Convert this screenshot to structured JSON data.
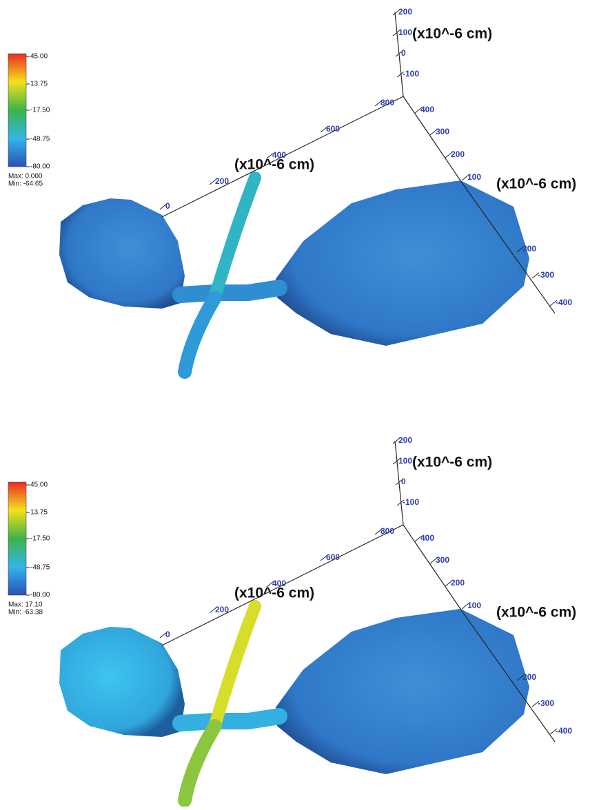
{
  "panels": [
    {
      "colorbar": {
        "ticks": [
          "45.00",
          "13.75",
          "-17.50",
          "-48.75",
          "-80.00"
        ],
        "max": "Max: 0.000",
        "min": "Min: -64.65"
      },
      "axes": {
        "vertical": {
          "ticks": [
            "200",
            "100",
            "0",
            "-100"
          ],
          "unit": "(x10^-6 cm)"
        },
        "long": {
          "ticks": [
            "800",
            "600",
            "400",
            "200",
            "0"
          ],
          "unit": "(x10^-6 cm)"
        },
        "diagonal": {
          "ticks": [
            "400",
            "300",
            "200",
            "100"
          ],
          "unit": "(x10^-6 cm)"
        },
        "lower": {
          "ticks": [
            "200",
            "-300",
            "-400"
          ]
        }
      }
    },
    {
      "colorbar": {
        "ticks": [
          "45.00",
          "13.75",
          "-17.50",
          "-48.75",
          "-80.00"
        ],
        "max": "Max: 17.10",
        "min": "Min: -63.38"
      },
      "axes": {
        "vertical": {
          "ticks": [
            "200",
            "100",
            "0",
            "-100"
          ],
          "unit": "(x10^-6 cm)"
        },
        "long": {
          "ticks": [
            "800",
            "600",
            "400",
            "200",
            "0"
          ],
          "unit": "(x10^-6 cm)"
        },
        "diagonal": {
          "ticks": [
            "400",
            "300",
            "200",
            "100"
          ],
          "unit": "(x10^-6 cm)"
        },
        "lower": {
          "ticks": [
            "200",
            "-300",
            "-400"
          ]
        }
      }
    }
  ]
}
